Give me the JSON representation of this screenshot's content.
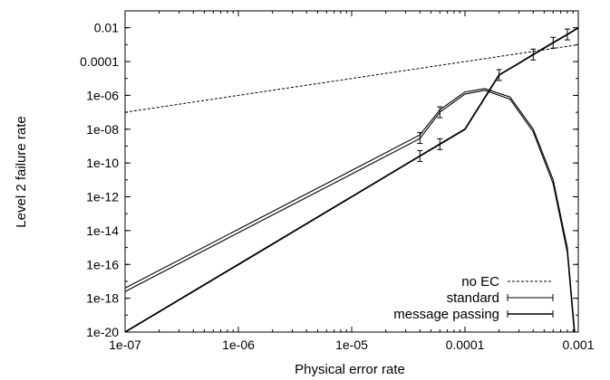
{
  "chart_data": {
    "type": "line",
    "xlabel": "Physical error rate",
    "ylabel": "Level 2 failure rate",
    "xscale": "log",
    "yscale": "log",
    "xlim": [
      1e-07,
      0.001
    ],
    "ylim": [
      1e-20,
      0.1
    ],
    "legend_position": "bottom-right",
    "x_ticks": [
      {
        "value": 1e-07,
        "label": "1e-07"
      },
      {
        "value": 1e-06,
        "label": "1e-06"
      },
      {
        "value": 1e-05,
        "label": "1e-05"
      },
      {
        "value": 0.0001,
        "label": "0.0001"
      },
      {
        "value": 0.001,
        "label": "0.001"
      }
    ],
    "y_ticks": [
      {
        "value": 1e-20,
        "label": "1e-20"
      },
      {
        "value": 1e-18,
        "label": "1e-18"
      },
      {
        "value": 1e-16,
        "label": "1e-16"
      },
      {
        "value": 1e-14,
        "label": "1e-14"
      },
      {
        "value": 1e-12,
        "label": "1e-12"
      },
      {
        "value": 1e-10,
        "label": "1e-10"
      },
      {
        "value": 1e-08,
        "label": "1e-08"
      },
      {
        "value": 1e-06,
        "label": "1e-06"
      },
      {
        "value": 0.0001,
        "label": "0.0001"
      },
      {
        "value": 0.01,
        "label": "0.01"
      }
    ],
    "series": [
      {
        "name": "no EC",
        "style": "dashed",
        "color": "#000000",
        "points": [
          [
            1e-07,
            1e-07
          ],
          [
            0.001,
            0.001
          ]
        ]
      },
      {
        "name": "standard",
        "style": "solid-double",
        "color": "#000000",
        "lines": [
          {
            "points": [
              [
                1e-07,
                4e-18
              ],
              [
                1e-06,
                1.2e-14
              ],
              [
                1e-05,
                3.6e-11
              ],
              [
                4e-05,
                4.6e-09
              ],
              [
                6e-05,
                1.4e-07
              ],
              [
                0.0001,
                1.6e-06
              ],
              [
                0.00015,
                2.5e-06
              ],
              [
                0.00025,
                8e-07
              ],
              [
                0.0004,
                1e-08
              ],
              [
                0.0006,
                1e-11
              ],
              [
                0.0008,
                1e-15
              ],
              [
                0.00093,
                1e-20
              ]
            ]
          },
          {
            "points": [
              [
                1e-07,
                2.5e-18
              ],
              [
                1e-06,
                7.5e-15
              ],
              [
                1e-05,
                2.2e-11
              ],
              [
                4e-05,
                2.8e-09
              ],
              [
                6e-05,
                1e-07
              ],
              [
                0.0001,
                1.2e-06
              ],
              [
                0.00015,
                2e-06
              ],
              [
                0.00025,
                6e-07
              ],
              [
                0.0004,
                7e-09
              ],
              [
                0.0006,
                6e-12
              ],
              [
                0.0008,
                5e-16
              ],
              [
                0.00092,
                1e-20
              ]
            ]
          }
        ],
        "error_bars": [
          [
            4e-05,
            3e-09
          ],
          [
            6e-05,
            1e-07
          ]
        ]
      },
      {
        "name": "message passing",
        "style": "solid",
        "color": "#000000",
        "points": [
          [
            1e-07,
            1e-20
          ],
          [
            1e-06,
            1e-16
          ],
          [
            1e-05,
            1e-12
          ],
          [
            4e-05,
            2.6e-10
          ],
          [
            6e-05,
            1.3e-09
          ],
          [
            0.0001,
            1e-08
          ],
          [
            0.0002,
            1.6e-05
          ],
          [
            0.0003,
            8e-05
          ],
          [
            0.0004,
            0.00026
          ],
          [
            0.0006,
            0.0013
          ],
          [
            0.0008,
            0.004
          ],
          [
            0.001,
            0.01
          ]
        ],
        "error_bars": [
          [
            4e-05,
            2.6e-10
          ],
          [
            6e-05,
            1.3e-09
          ],
          [
            0.0002,
            1.6e-05
          ],
          [
            0.0004,
            0.00026
          ],
          [
            0.0006,
            0.0013
          ],
          [
            0.0008,
            0.004
          ]
        ]
      }
    ]
  }
}
